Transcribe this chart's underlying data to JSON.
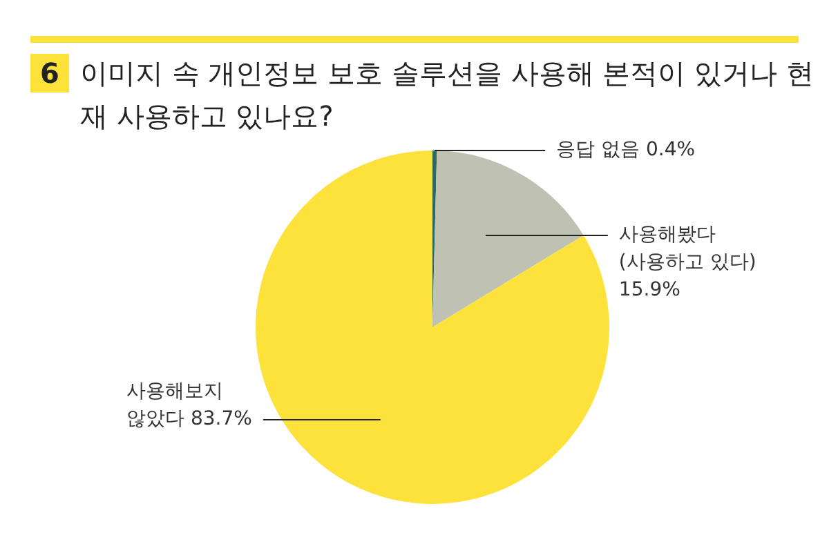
{
  "chart_data": {
    "type": "pie",
    "title": "6 이미지 속 개인정보 보호 솔루션을 사용해 본적이 있거나 현재 사용하고 있나요?",
    "categories": [
      "응답 없음",
      "사용해봤다\n(사용하고 있다)\n",
      "사용해보지\n않았다"
    ],
    "values": [
      0.4,
      15.9,
      83.7
    ],
    "value_labels": [
      "0.4%",
      "15.9%",
      "83.7%"
    ],
    "colors": [
      "#2e6a5a",
      "#bfc2b3",
      "#fde23c"
    ],
    "legend": false
  }
}
